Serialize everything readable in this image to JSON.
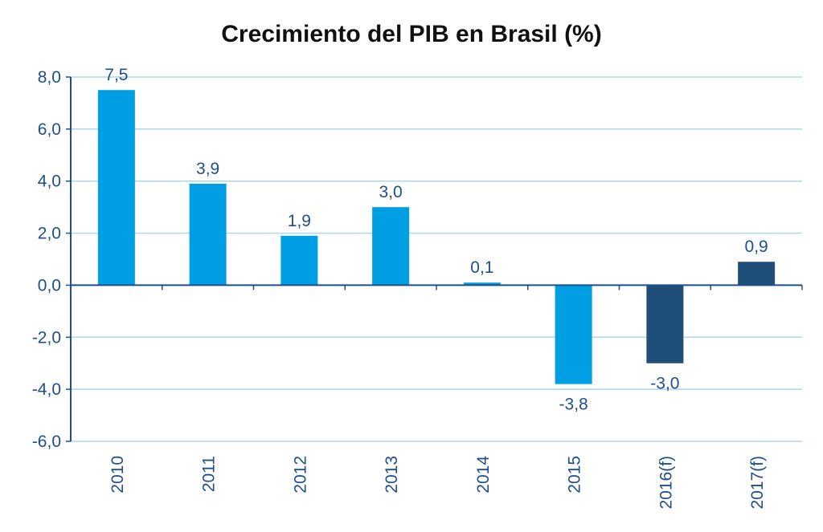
{
  "chart_data": {
    "type": "bar",
    "title": "Crecimiento del PIB en Brasil (%)",
    "categories": [
      "2010",
      "2011",
      "2012",
      "2013",
      "2014",
      "2015",
      "2016(f)",
      "2017(f)"
    ],
    "values": [
      7.5,
      3.9,
      1.9,
      3.0,
      0.1,
      -3.8,
      -3.0,
      0.9
    ],
    "value_labels": [
      "7,5",
      "3,9",
      "1,9",
      "3,0",
      "0,1",
      "-3,8",
      "-3,0",
      "0,9"
    ],
    "forecast": [
      false,
      false,
      false,
      false,
      false,
      false,
      true,
      true
    ],
    "y_ticks": [
      8,
      6,
      4,
      2,
      0,
      -2,
      -4,
      -6
    ],
    "y_tick_labels": [
      "8,0",
      "6,0",
      "4,0",
      "2,0",
      "0,0",
      "-2,0",
      "-4,0",
      "-6,0"
    ],
    "ylim": [
      -6,
      8
    ],
    "grid": true,
    "xlabel": "",
    "ylabel": "",
    "colors": {
      "actual": "#009fe3",
      "forecast": "#1f4e79",
      "text": "#1f4e8c",
      "grid": "#a9d8f0",
      "axis": "#1f4e8c"
    }
  }
}
